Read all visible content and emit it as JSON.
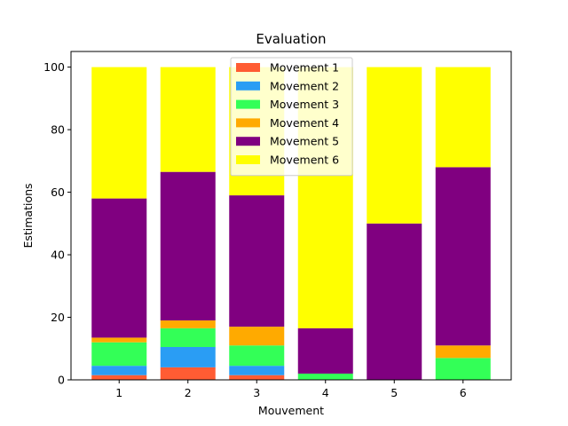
{
  "chart_data": {
    "type": "bar",
    "stacked": true,
    "title": "Evaluation",
    "xlabel": "Mouvement",
    "ylabel": "Estimations",
    "categories": [
      "1",
      "2",
      "3",
      "4",
      "5",
      "6"
    ],
    "ylim": [
      0,
      105
    ],
    "yticks": [
      0,
      20,
      40,
      60,
      80,
      100
    ],
    "grid": false,
    "legend_position": "upper center",
    "series": [
      {
        "name": "Movement 1",
        "color": "#ff5c33",
        "values": [
          1.5,
          4,
          1.5,
          0,
          0,
          0
        ]
      },
      {
        "name": "Movement 2",
        "color": "#2a9df4",
        "values": [
          3,
          6.5,
          3,
          0,
          0,
          0
        ]
      },
      {
        "name": "Movement 3",
        "color": "#33ff57",
        "values": [
          7.5,
          6,
          6.5,
          2,
          0,
          7
        ]
      },
      {
        "name": "Movement 4",
        "color": "#ffaa00",
        "values": [
          1.5,
          2.5,
          6,
          0,
          0,
          4
        ]
      },
      {
        "name": "Movement 5",
        "color": "#800080",
        "values": [
          44.5,
          47.5,
          42,
          14.5,
          50,
          57
        ]
      },
      {
        "name": "Movement 6",
        "color": "#ffff00",
        "values": [
          42,
          33.5,
          41,
          83.5,
          50,
          32
        ]
      }
    ]
  }
}
